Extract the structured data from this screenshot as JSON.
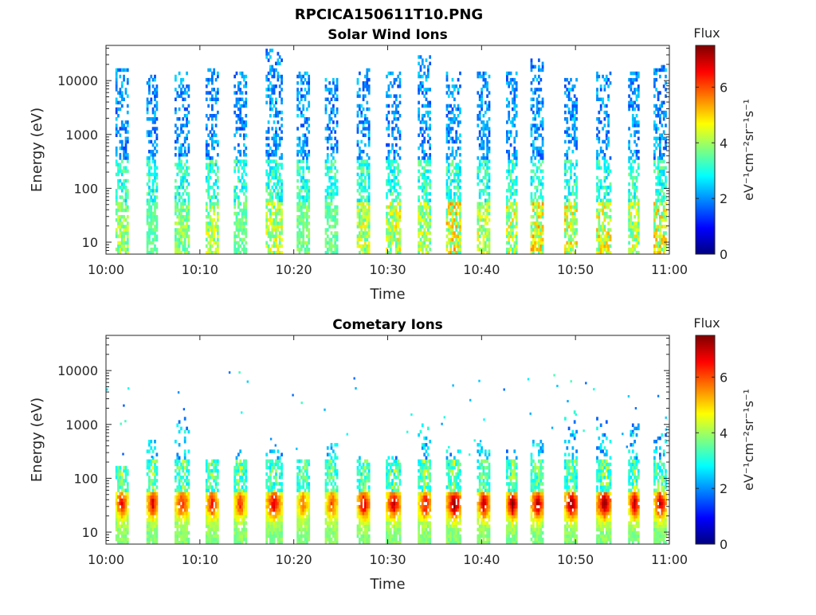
{
  "figure": {
    "title": "RPCICA150611T10.PNG"
  },
  "colormap": {
    "name": "jet",
    "stops": [
      "#00007f",
      "#0000ff",
      "#007fff",
      "#00ffff",
      "#7fff7f",
      "#ffff00",
      "#ff7f00",
      "#ff0000",
      "#7f0000"
    ]
  },
  "chart_data": [
    {
      "type": "heatmap",
      "title": "Solar Wind Ions",
      "xlabel": "Time",
      "ylabel": "Energy (eV)",
      "x_ticks": [
        "10:00",
        "10:10",
        "10:20",
        "10:30",
        "10:40",
        "10:50",
        "11:00"
      ],
      "y_scale": "log",
      "y_ticks": [
        10,
        100,
        1000,
        10000
      ],
      "y_tick_labels": [
        "10",
        "100",
        "1000",
        "10000"
      ],
      "ylim": [
        6,
        45000
      ],
      "colorbar": {
        "label": "Flux",
        "unit_label": "eV⁻¹cm⁻²sr⁻¹s⁻¹",
        "range": [
          0,
          7.5
        ],
        "ticks": [
          0,
          2,
          4,
          6
        ],
        "tick_labels": [
          "0",
          "2",
          "4",
          "6"
        ]
      },
      "grid": false,
      "bursts": [
        {
          "start_min": 1.0,
          "end_min": 2.2,
          "peak_flux": 4.6,
          "max_energy_ev": 15000
        },
        {
          "start_min": 4.3,
          "end_min": 5.5,
          "peak_flux": 3.8,
          "max_energy_ev": 12000
        },
        {
          "start_min": 7.3,
          "end_min": 8.8,
          "peak_flux": 4.4,
          "max_energy_ev": 13000
        },
        {
          "start_min": 10.6,
          "end_min": 11.8,
          "peak_flux": 4.8,
          "max_energy_ev": 16000
        },
        {
          "start_min": 13.6,
          "end_min": 14.8,
          "peak_flux": 4.0,
          "max_energy_ev": 14000
        },
        {
          "start_min": 17.0,
          "end_min": 18.6,
          "peak_flux": 5.0,
          "max_energy_ev": 35000
        },
        {
          "start_min": 20.3,
          "end_min": 21.5,
          "peak_flux": 4.2,
          "max_energy_ev": 14000
        },
        {
          "start_min": 23.3,
          "end_min": 24.6,
          "peak_flux": 4.0,
          "max_energy_ev": 12000
        },
        {
          "start_min": 26.7,
          "end_min": 28.0,
          "peak_flux": 5.0,
          "max_energy_ev": 15000
        },
        {
          "start_min": 29.8,
          "end_min": 31.3,
          "peak_flux": 5.2,
          "max_energy_ev": 14000
        },
        {
          "start_min": 33.2,
          "end_min": 34.6,
          "peak_flux": 4.8,
          "max_energy_ev": 28000
        },
        {
          "start_min": 36.2,
          "end_min": 37.8,
          "peak_flux": 5.6,
          "max_energy_ev": 13000
        },
        {
          "start_min": 39.5,
          "end_min": 40.8,
          "peak_flux": 5.0,
          "max_energy_ev": 14000
        },
        {
          "start_min": 42.6,
          "end_min": 43.8,
          "peak_flux": 5.2,
          "max_energy_ev": 14000
        },
        {
          "start_min": 45.2,
          "end_min": 46.6,
          "peak_flux": 5.6,
          "max_energy_ev": 23000
        },
        {
          "start_min": 48.8,
          "end_min": 50.2,
          "peak_flux": 5.4,
          "max_energy_ev": 11000
        },
        {
          "start_min": 52.2,
          "end_min": 53.8,
          "peak_flux": 5.4,
          "max_energy_ev": 14000
        },
        {
          "start_min": 55.6,
          "end_min": 56.8,
          "peak_flux": 5.0,
          "max_energy_ev": 13000
        },
        {
          "start_min": 58.3,
          "end_min": 59.6,
          "peak_flux": 5.4,
          "max_energy_ev": 18000
        }
      ]
    },
    {
      "type": "heatmap",
      "title": "Cometary Ions",
      "xlabel": "Time",
      "ylabel": "Energy (eV)",
      "x_ticks": [
        "10:00",
        "10:10",
        "10:20",
        "10:30",
        "10:40",
        "10:50",
        "11:00"
      ],
      "y_scale": "log",
      "y_ticks": [
        10,
        100,
        1000,
        10000
      ],
      "y_tick_labels": [
        "10",
        "100",
        "1000",
        "10000"
      ],
      "ylim": [
        6,
        45000
      ],
      "colorbar": {
        "label": "Flux",
        "unit_label": "eV⁻¹cm⁻²sr⁻¹s⁻¹",
        "range": [
          0,
          7.5
        ],
        "ticks": [
          0,
          2,
          4,
          6
        ],
        "tick_labels": [
          "0",
          "2",
          "4",
          "6"
        ]
      },
      "grid": false,
      "bursts": [
        {
          "start_min": 1.0,
          "end_min": 2.2,
          "peak_flux": 6.4,
          "max_energy_ev": 150
        },
        {
          "start_min": 4.3,
          "end_min": 5.5,
          "peak_flux": 6.6,
          "max_energy_ev": 500
        },
        {
          "start_min": 7.3,
          "end_min": 8.8,
          "peak_flux": 6.2,
          "max_energy_ev": 1500
        },
        {
          "start_min": 10.6,
          "end_min": 11.8,
          "peak_flux": 6.4,
          "max_energy_ev": 200
        },
        {
          "start_min": 13.6,
          "end_min": 14.8,
          "peak_flux": 6.0,
          "max_energy_ev": 350
        },
        {
          "start_min": 17.0,
          "end_min": 18.6,
          "peak_flux": 6.6,
          "max_energy_ev": 300
        },
        {
          "start_min": 20.3,
          "end_min": 21.5,
          "peak_flux": 5.6,
          "max_energy_ev": 200
        },
        {
          "start_min": 23.3,
          "end_min": 24.6,
          "peak_flux": 5.8,
          "max_energy_ev": 400
        },
        {
          "start_min": 26.7,
          "end_min": 28.0,
          "peak_flux": 6.8,
          "max_energy_ev": 250
        },
        {
          "start_min": 29.8,
          "end_min": 31.3,
          "peak_flux": 6.8,
          "max_energy_ev": 250
        },
        {
          "start_min": 33.2,
          "end_min": 34.6,
          "peak_flux": 6.4,
          "max_energy_ev": 1000
        },
        {
          "start_min": 36.2,
          "end_min": 37.8,
          "peak_flux": 7.2,
          "max_energy_ev": 300
        },
        {
          "start_min": 39.5,
          "end_min": 40.8,
          "peak_flux": 6.8,
          "max_energy_ev": 400
        },
        {
          "start_min": 42.6,
          "end_min": 43.8,
          "peak_flux": 7.2,
          "max_energy_ev": 300
        },
        {
          "start_min": 45.2,
          "end_min": 46.6,
          "peak_flux": 7.0,
          "max_energy_ev": 500
        },
        {
          "start_min": 48.8,
          "end_min": 50.2,
          "peak_flux": 7.2,
          "max_energy_ev": 2000
        },
        {
          "start_min": 52.2,
          "end_min": 53.8,
          "peak_flux": 7.2,
          "max_energy_ev": 1200
        },
        {
          "start_min": 55.6,
          "end_min": 56.8,
          "peak_flux": 6.8,
          "max_energy_ev": 1000
        },
        {
          "start_min": 58.3,
          "end_min": 59.6,
          "peak_flux": 6.8,
          "max_energy_ev": 600
        }
      ]
    }
  ]
}
